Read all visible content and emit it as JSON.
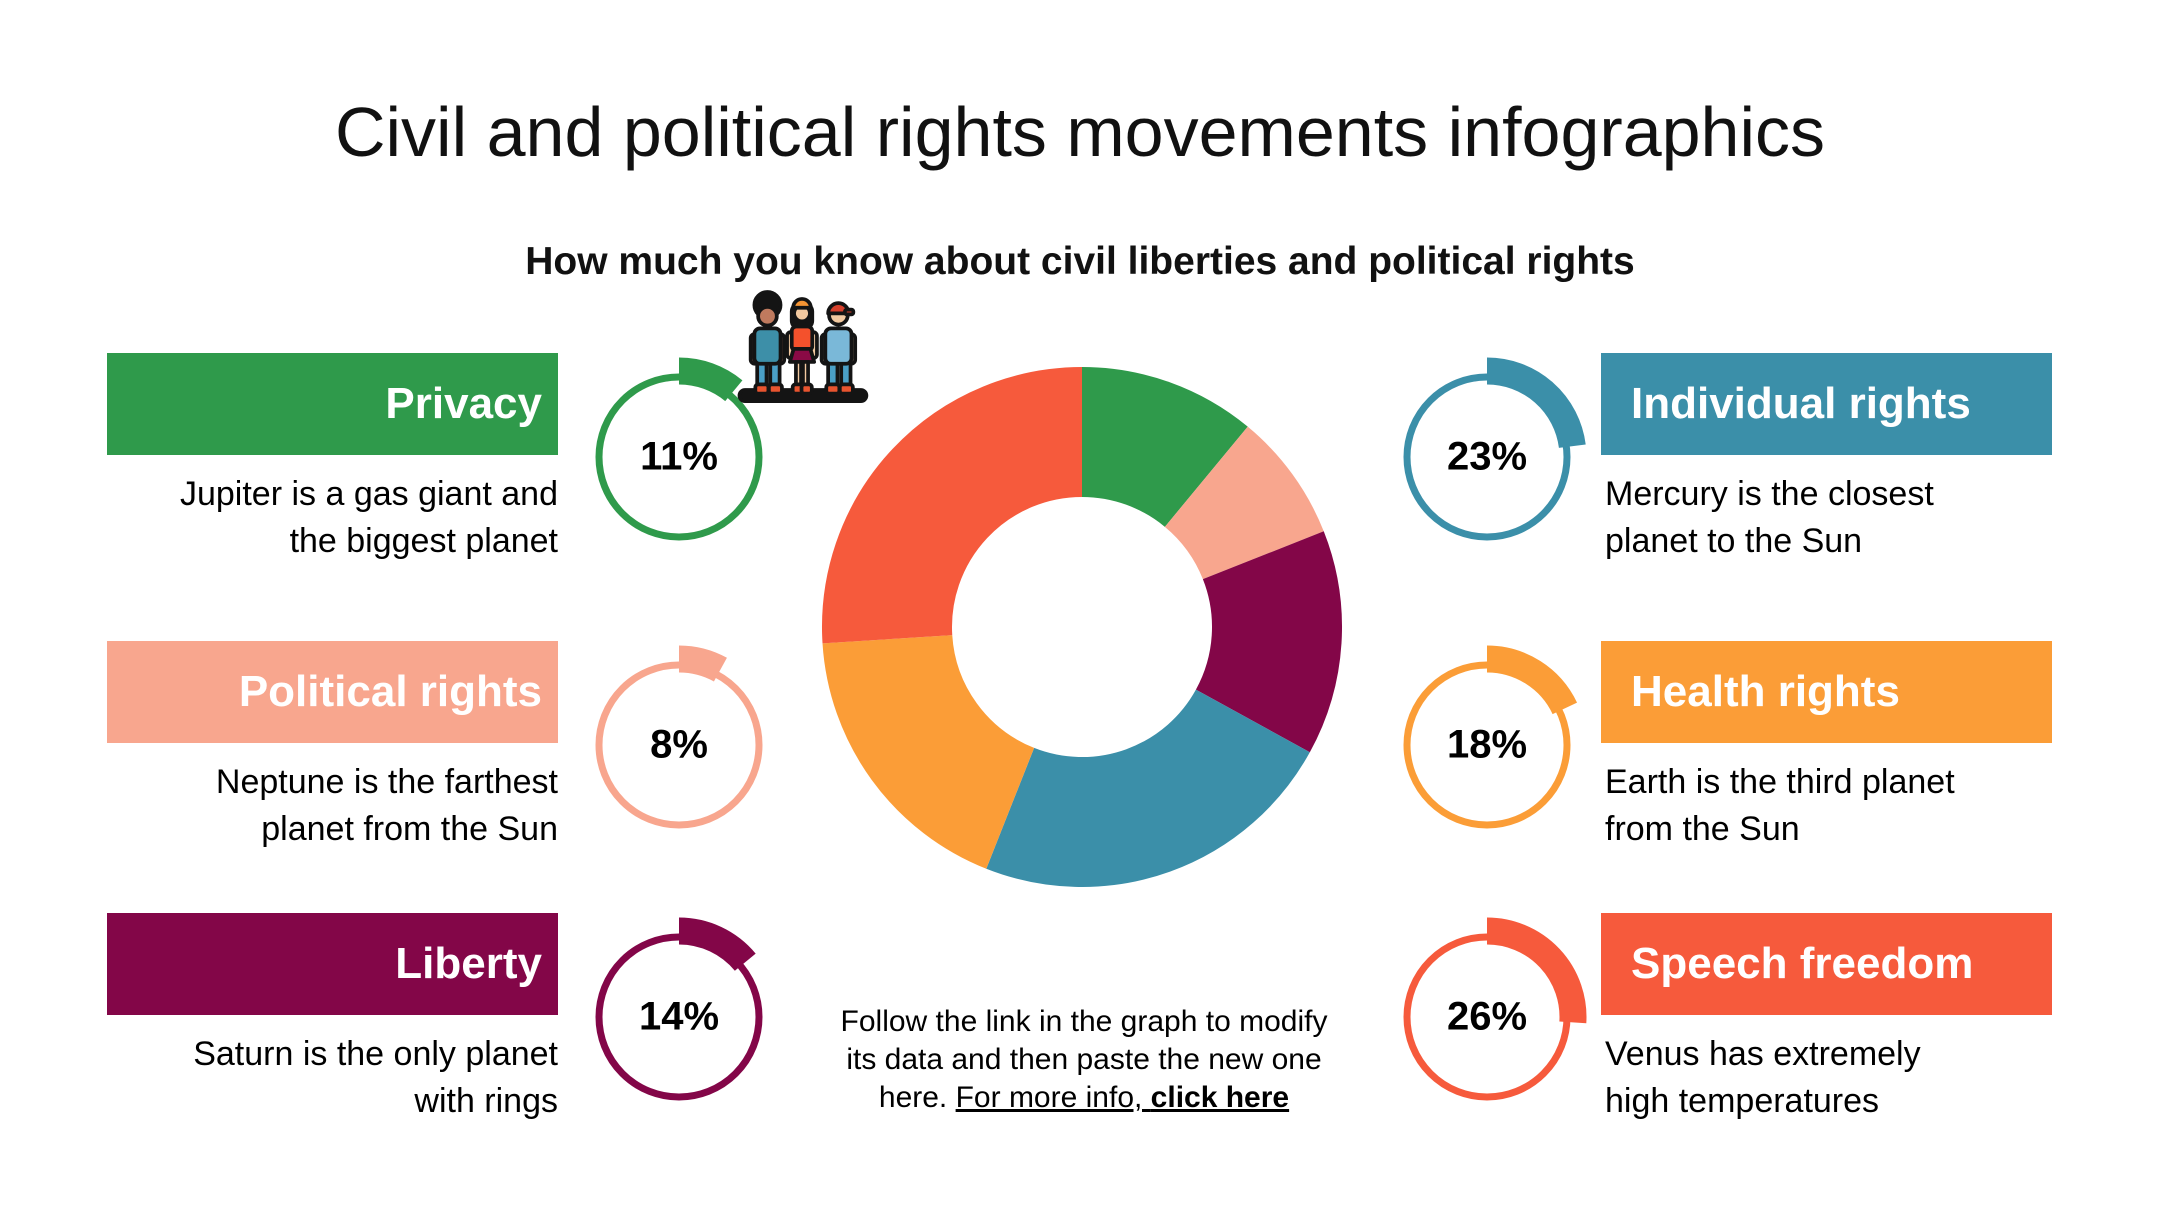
{
  "page": {
    "title": "Civil and political rights movements infographics",
    "subtitle": "How much you know about civil liberties and political rights"
  },
  "stats": [
    {
      "id": "privacy",
      "label": "Privacy",
      "description_lines": [
        "Jupiter is a gas giant and",
        "the biggest planet"
      ],
      "percent": 11,
      "percent_label": "11%",
      "color": "#2F9A4B",
      "side": "left"
    },
    {
      "id": "political-rights",
      "label": "Political rights",
      "description_lines": [
        "Neptune is the farthest",
        "planet from the Sun"
      ],
      "percent": 8,
      "percent_label": "8%",
      "color": "#F8A68E",
      "side": "left"
    },
    {
      "id": "liberty",
      "label": "Liberty",
      "description_lines": [
        "Saturn is the only planet",
        "with rings"
      ],
      "percent": 14,
      "percent_label": "14%",
      "color": "#830648",
      "side": "left"
    },
    {
      "id": "individual-rights",
      "label": "Individual rights",
      "description_lines": [
        "Mercury is the closest",
        "planet to the Sun"
      ],
      "percent": 23,
      "percent_label": "23%",
      "color": "#3B8FA9",
      "side": "right"
    },
    {
      "id": "health-rights",
      "label": "Health rights",
      "description_lines": [
        "Earth is the third planet",
        "from the Sun"
      ],
      "percent": 18,
      "percent_label": "18%",
      "color": "#FB9D37",
      "side": "right"
    },
    {
      "id": "speech-freedom",
      "label": "Speech freedom",
      "description_lines": [
        "Venus has extremely",
        "high temperatures"
      ],
      "percent": 26,
      "percent_label": "26%",
      "color": "#F65A3C",
      "side": "right"
    }
  ],
  "chart_data": {
    "type": "pie",
    "donut": true,
    "start_angle_deg": 0,
    "direction": "clockwise",
    "categories": [
      "Privacy",
      "Political rights",
      "Liberty",
      "Individual rights",
      "Health rights",
      "Speech freedom"
    ],
    "values": [
      11,
      8,
      14,
      23,
      18,
      26
    ],
    "colors": [
      "#2F9A4B",
      "#F8A68E",
      "#830648",
      "#3B8FA9",
      "#FB9D37",
      "#F65A3C"
    ],
    "legend_position": "none",
    "center_icon": "three-people-icon"
  },
  "footnote": {
    "line1": "Follow the link in the graph to modify",
    "line2": "its data and then paste the new one",
    "line3_prefix": "here. ",
    "line3_link_regular": "For more info, ",
    "line3_link_bold": "click here"
  }
}
